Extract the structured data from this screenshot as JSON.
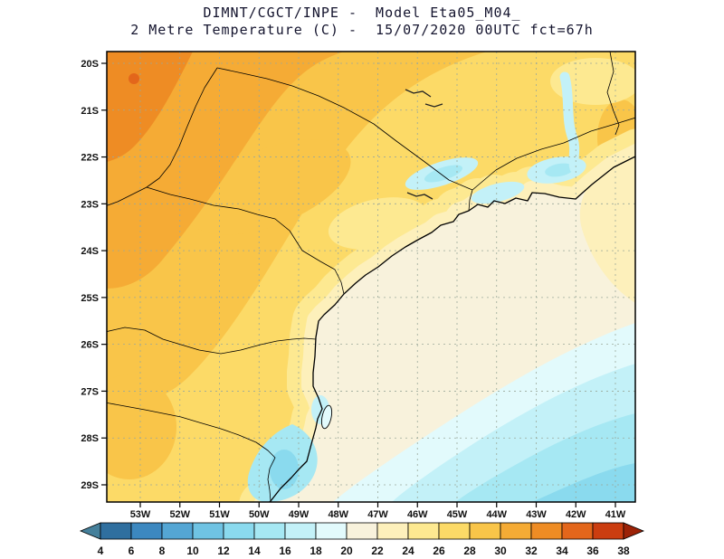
{
  "title": {
    "line1": "DIMNT/CGCT/INPE -  Model Eta05_M04_",
    "line2": "2 Metre Temperature (C) -  15/07/2020 00UTC fct=67h"
  },
  "map": {
    "lat_labels": [
      "20S",
      "21S",
      "22S",
      "23S",
      "24S",
      "25S",
      "26S",
      "27S",
      "28S",
      "29S"
    ],
    "lon_labels": [
      "53W",
      "52W",
      "51W",
      "50W",
      "49W",
      "48W",
      "47W",
      "46W",
      "45W",
      "44W",
      "43W",
      "42W",
      "41W"
    ]
  },
  "colorbar": {
    "ticks": [
      4,
      6,
      8,
      10,
      12,
      14,
      16,
      18,
      20,
      22,
      24,
      26,
      28,
      30,
      32,
      34,
      36,
      38
    ],
    "segment_colors": [
      "#2f6f9f",
      "#3c88c0",
      "#54a6d4",
      "#6fc3e3",
      "#8adaee",
      "#a6e8f3",
      "#c3f1f8",
      "#e2fafc",
      "#f8f2dc",
      "#fdf0bb",
      "#fde991",
      "#fcda67",
      "#f9c549",
      "#f5ab35",
      "#ee8c24",
      "#e3661b",
      "#cb3d10"
    ],
    "arrow_left_color": "#45809b",
    "arrow_right_color": "#9c2207"
  },
  "chart_data": {
    "type": "heatmap",
    "title": "2 Metre Temperature (C)",
    "institution": "DIMNT/CGCT/INPE",
    "model_label": "Model Eta05_M04_",
    "valid_label": "15/07/2020 00UTC fct=67h",
    "units": "C",
    "lat_ticks": [
      "20S",
      "21S",
      "22S",
      "23S",
      "24S",
      "25S",
      "26S",
      "27S",
      "28S",
      "29S"
    ],
    "lon_ticks": [
      "53W",
      "52W",
      "51W",
      "50W",
      "49W",
      "48W",
      "47W",
      "46W",
      "45W",
      "44W",
      "43W",
      "42W",
      "41W"
    ],
    "colorbar_ticks": [
      4,
      6,
      8,
      10,
      12,
      14,
      16,
      18,
      20,
      22,
      24,
      26,
      28,
      30,
      32,
      34,
      36,
      38
    ],
    "legend_position": "bottom",
    "grid": "dashed, 1 degree spacing",
    "estimated_field": [
      {
        "region": "far northwest corner",
        "temp_c": 32
      },
      {
        "region": "northwest interior",
        "temp_c": 29
      },
      {
        "region": "central interior plateau",
        "temp_c": 27
      },
      {
        "region": "inland pale patches",
        "temp_c": 25
      },
      {
        "region": "coastal strip",
        "temp_c": 23
      },
      {
        "region": "open ocean southeast",
        "temp_c": 21
      },
      {
        "region": "cold valley patches 22-23S 43-46W",
        "temp_c": 16
      },
      {
        "region": "far southeast ocean corner",
        "temp_c": 13
      },
      {
        "region": "south coast 28-29S",
        "temp_c": 14
      }
    ]
  }
}
